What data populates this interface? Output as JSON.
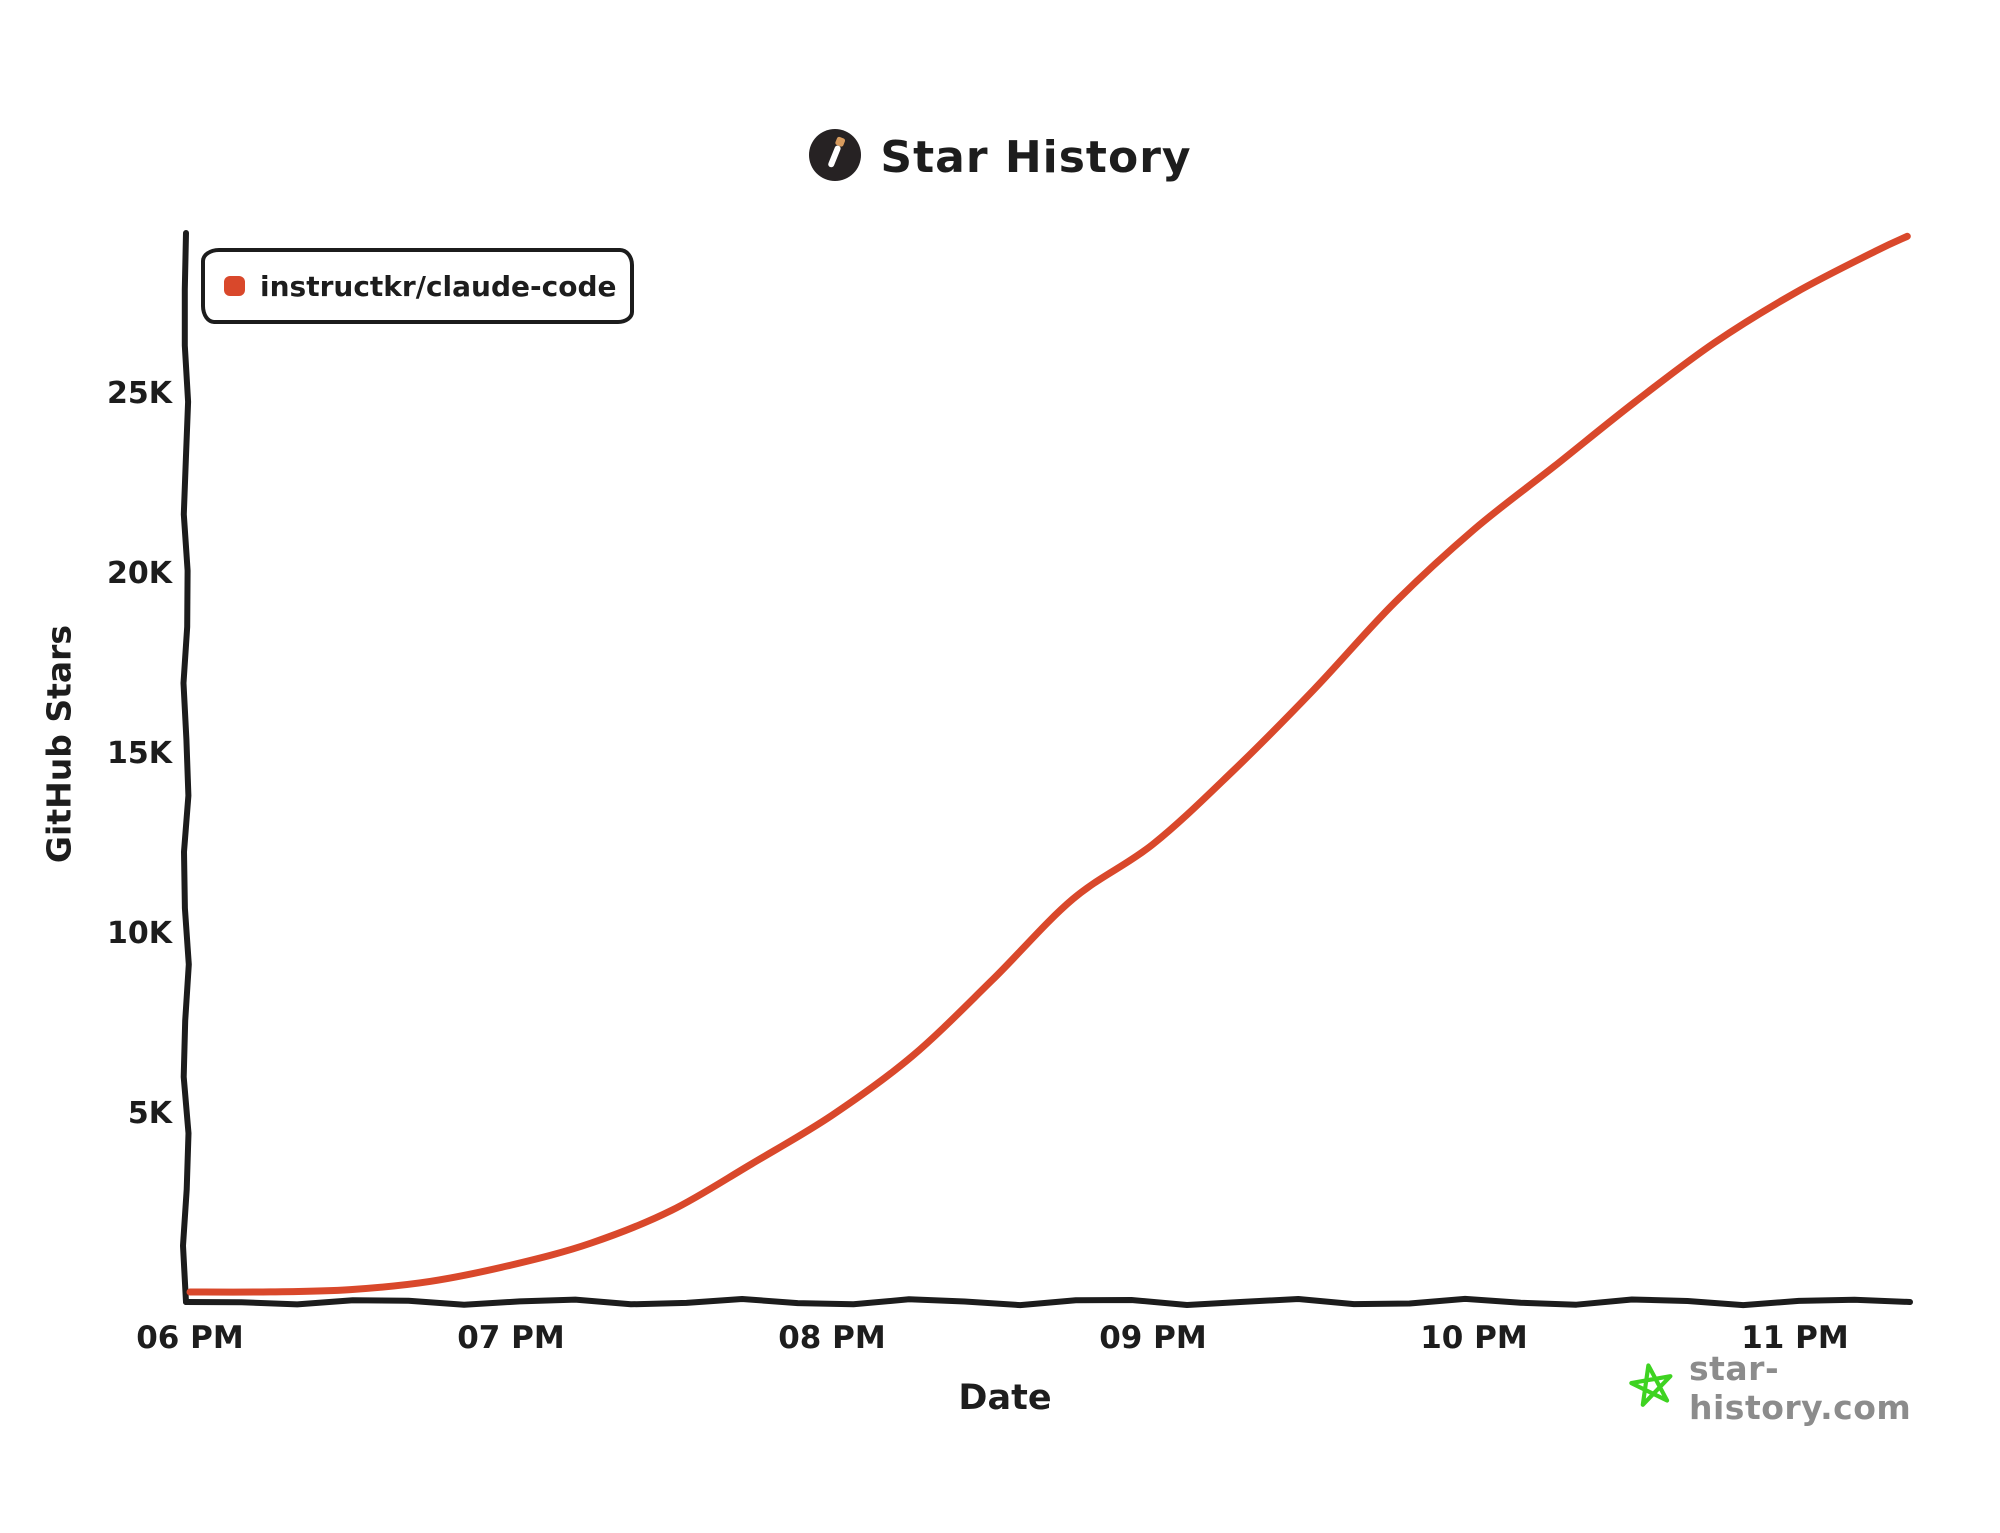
{
  "page": {
    "title": "Star History"
  },
  "header": {
    "title": "Star History",
    "logo_icon": "match-icon",
    "logo_circle_color": "#262223",
    "logo_stick_color": "#ffffff",
    "logo_tip_color": "#d79b5e"
  },
  "legend": {
    "items": [
      {
        "label": "instructkr/claude-code",
        "color": "#d9482b",
        "marker": "rounded-square"
      }
    ]
  },
  "watermark": {
    "text": "star-history.com",
    "icon": "star-icon",
    "icon_color": "#3ed321",
    "text_color": "#8c8c8c"
  },
  "colors": {
    "ink": "#1c1c1c",
    "background": "#ffffff",
    "series_red": "#d9482b",
    "watermark_gray": "#8c8c8c",
    "watermark_green": "#3ed321"
  },
  "chart_data": {
    "type": "line",
    "title": "Star History",
    "xlabel": "Date",
    "ylabel": "GitHub Stars",
    "x_tick_labels": [
      "06 PM",
      "07 PM",
      "08 PM",
      "09 PM",
      "10 PM",
      "11 PM"
    ],
    "x_tick_hours": [
      0,
      1,
      2,
      3,
      4,
      5
    ],
    "y_tick_labels": [
      "5K",
      "10K",
      "15K",
      "20K",
      "25K"
    ],
    "y_tick_values": [
      5000,
      10000,
      15000,
      20000,
      25000
    ],
    "ylim": [
      0,
      29500
    ],
    "xlim_hours": [
      0,
      5.35
    ],
    "grid": false,
    "legend_position": "top-left",
    "series": [
      {
        "name": "instructkr/claude-code",
        "color": "#d9482b",
        "x_unit": "hours_after_06_PM",
        "points": [
          {
            "time": "06:00 PM",
            "t": 0.0,
            "stars": 20
          },
          {
            "time": "06:15 PM",
            "t": 0.25,
            "stars": 70
          },
          {
            "time": "06:30 PM",
            "t": 0.5,
            "stars": 150
          },
          {
            "time": "06:45 PM",
            "t": 0.75,
            "stars": 320
          },
          {
            "time": "07:00 PM",
            "t": 1.0,
            "stars": 800
          },
          {
            "time": "07:15 PM",
            "t": 1.25,
            "stars": 1450
          },
          {
            "time": "07:30 PM",
            "t": 1.5,
            "stars": 2300
          },
          {
            "time": "07:45 PM",
            "t": 1.75,
            "stars": 3600
          },
          {
            "time": "08:00 PM",
            "t": 2.0,
            "stars": 5000
          },
          {
            "time": "08:15 PM",
            "t": 2.25,
            "stars": 6600
          },
          {
            "time": "08:30 PM",
            "t": 2.5,
            "stars": 8700
          },
          {
            "time": "08:45 PM",
            "t": 2.75,
            "stars": 11000
          },
          {
            "time": "09:00 PM",
            "t": 3.0,
            "stars": 12500
          },
          {
            "time": "09:15 PM",
            "t": 3.25,
            "stars": 14500
          },
          {
            "time": "09:30 PM",
            "t": 3.5,
            "stars": 16800
          },
          {
            "time": "09:45 PM",
            "t": 3.75,
            "stars": 19200
          },
          {
            "time": "10:00 PM",
            "t": 4.0,
            "stars": 21200
          },
          {
            "time": "10:15 PM",
            "t": 4.25,
            "stars": 23000
          },
          {
            "time": "10:30 PM",
            "t": 4.5,
            "stars": 24800
          },
          {
            "time": "10:45 PM",
            "t": 4.75,
            "stars": 26400
          },
          {
            "time": "11:00 PM",
            "t": 5.0,
            "stars": 27800
          },
          {
            "time": "11:15 PM",
            "t": 5.25,
            "stars": 29000
          },
          {
            "time": "11:21 PM",
            "t": 5.35,
            "stars": 29400
          }
        ]
      }
    ]
  }
}
